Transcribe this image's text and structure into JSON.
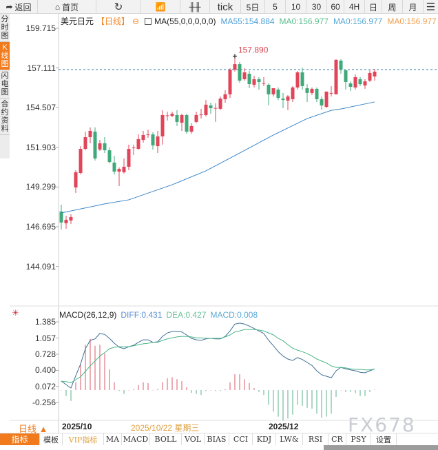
{
  "toolbar": {
    "back": "返回",
    "home": "首页",
    "tick": "tick",
    "items": [
      "5日",
      "5",
      "10",
      "30",
      "60",
      "4H",
      "日",
      "周",
      "月"
    ]
  },
  "sidebar": [
    "分时图",
    "K线图",
    "闪电图",
    "合约资料"
  ],
  "info": {
    "symbol": "美元日元",
    "period": "【日线】",
    "ma_label": "MA(55,0,0,0,0,0)",
    "ma55": "MA55:154.884",
    "ma0a": "MA0:156.977",
    "ma0b": "MA0:156.977",
    "ma0c": "MA0:156.977"
  },
  "colors": {
    "up": "#e0455a",
    "down": "#3fa97a",
    "ma55": "#3b85c6",
    "diff": "#3d6f95",
    "dea": "#48b687",
    "accent": "#f07a1c"
  },
  "price_axis": [
    "159.715",
    "157.111",
    "154.507",
    "151.903",
    "149.299",
    "146.695",
    "144.091"
  ],
  "high_label": "157.890",
  "last_price_line": 157.0,
  "macd": {
    "title": "MACD(26,12,9)",
    "diff_label": "DIFF:0.431",
    "dea_label": "DEA:0.427",
    "macd_label": "MACD:0.008",
    "axis": [
      "1.385",
      "1.057",
      "0.728",
      "0.400",
      "0.072",
      "-0.256"
    ],
    "diff": [
      0.18,
      0.11,
      0.04,
      0.29,
      0.53,
      0.84,
      1.01,
      1.04,
      1.15,
      1.13,
      1.05,
      0.95,
      0.87,
      0.84,
      0.88,
      0.91,
      0.97,
      1.02,
      1.02,
      0.97,
      0.98,
      1.09,
      1.16,
      1.19,
      1.19,
      1.18,
      1.12,
      1.05,
      1.02,
      1.01,
      1.04,
      1.05,
      1.04,
      1.04,
      1.09,
      1.2,
      1.34,
      1.36,
      1.34,
      1.3,
      1.25,
      1.2,
      1.15,
      1.01,
      0.9,
      0.78,
      0.69,
      0.63,
      0.6,
      0.66,
      0.62,
      0.56,
      0.5,
      0.39,
      0.31,
      0.28,
      0.25,
      0.39,
      0.46,
      0.43,
      0.41,
      0.39,
      0.36,
      0.35,
      0.39,
      0.431
    ],
    "dea": [
      0.18,
      0.17,
      0.15,
      0.21,
      0.27,
      0.38,
      0.49,
      0.59,
      0.69,
      0.76,
      0.84,
      0.87,
      0.88,
      0.88,
      0.88,
      0.9,
      0.92,
      0.94,
      0.95,
      0.97,
      0.97,
      1.01,
      1.04,
      1.06,
      1.08,
      1.09,
      1.09,
      1.08,
      1.06,
      1.06,
      1.05,
      1.05,
      1.05,
      1.05,
      1.08,
      1.12,
      1.18,
      1.2,
      1.23,
      1.23,
      1.23,
      1.22,
      1.2,
      1.16,
      1.12,
      1.05,
      1.0,
      0.92,
      0.85,
      0.81,
      0.78,
      0.74,
      0.69,
      0.63,
      0.59,
      0.55,
      0.49,
      0.46,
      0.46,
      0.45,
      0.43,
      0.42,
      0.42,
      0.41,
      0.41,
      0.427
    ],
    "hist": [
      0,
      -0.12,
      -0.22,
      0.16,
      0.52,
      0.92,
      1.04,
      0.9,
      0.92,
      0.74,
      0.42,
      0.16,
      -0.02,
      -0.08,
      0,
      0.02,
      0.1,
      0.16,
      0.14,
      0,
      0.02,
      0.16,
      0.24,
      0.26,
      0.22,
      0.18,
      0.06,
      -0.06,
      -0.08,
      -0.1,
      -0.02,
      0,
      -0.02,
      -0.02,
      0.02,
      0.16,
      0.32,
      0.32,
      0.22,
      0.14,
      0.04,
      -0.04,
      -0.1,
      -0.3,
      -0.44,
      -0.54,
      -0.62,
      -0.58,
      -0.5,
      -0.3,
      -0.32,
      -0.36,
      -0.38,
      -0.48,
      -0.56,
      -0.54,
      -0.48,
      -0.14,
      0,
      -0.04,
      -0.04,
      -0.06,
      -0.12,
      -0.12,
      -0.04,
      0.008
    ]
  },
  "chart_data": {
    "type": "candlestick",
    "ylim": [
      144.091,
      159.715
    ],
    "candles_ohlc": [
      [
        147.69,
        148.14,
        146.51,
        146.97
      ],
      [
        146.92,
        147.42,
        146.56,
        147.15
      ],
      [
        147.1,
        147.51,
        146.88,
        147.33
      ],
      [
        149.27,
        150.4,
        148.91,
        150.27
      ],
      [
        150.22,
        151.98,
        150.13,
        151.8
      ],
      [
        151.8,
        152.93,
        151.71,
        152.57
      ],
      [
        152.57,
        153.21,
        152.17,
        152.98
      ],
      [
        152.93,
        153.21,
        151.04,
        151.17
      ],
      [
        151.76,
        152.39,
        151.67,
        152.17
      ],
      [
        152.17,
        152.57,
        151.53,
        151.71
      ],
      [
        151.71,
        151.89,
        150.85,
        150.94
      ],
      [
        150.9,
        151.35,
        150.13,
        150.31
      ],
      [
        150.31,
        150.58,
        149.36,
        150.49
      ],
      [
        150.27,
        151.17,
        150.18,
        150.63
      ],
      [
        150.63,
        152.08,
        150.4,
        151.8
      ],
      [
        151.85,
        152.08,
        151.4,
        151.89
      ],
      [
        151.8,
        152.75,
        151.76,
        152.44
      ],
      [
        152.39,
        152.98,
        152.21,
        152.71
      ],
      [
        152.73,
        153.07,
        152.53,
        152.75
      ],
      [
        152.75,
        152.89,
        151.76,
        152.03
      ],
      [
        151.98,
        152.98,
        151.53,
        152.62
      ],
      [
        152.62,
        154.34,
        152.08,
        154.02
      ],
      [
        153.97,
        154.24,
        153.66,
        154.0
      ],
      [
        153.97,
        154.24,
        153.88,
        154.11
      ],
      [
        154.02,
        154.34,
        153.3,
        153.57
      ],
      [
        153.52,
        154.11,
        152.98,
        154.02
      ],
      [
        154.02,
        154.11,
        152.8,
        152.93
      ],
      [
        152.93,
        153.48,
        152.8,
        153.3
      ],
      [
        153.57,
        154.24,
        153.48,
        154.02
      ],
      [
        154.04,
        154.43,
        153.79,
        154.06
      ],
      [
        154.02,
        155.01,
        153.93,
        154.7
      ],
      [
        154.65,
        154.83,
        154.11,
        154.47
      ],
      [
        154.47,
        154.79,
        153.57,
        154.49
      ],
      [
        154.43,
        155.24,
        154.34,
        155.1
      ],
      [
        155.06,
        155.65,
        154.83,
        155.38
      ],
      [
        155.38,
        157.09,
        155.15,
        157.0
      ],
      [
        157.0,
        157.89,
        156.87,
        157.36
      ],
      [
        157.36,
        157.5,
        156.14,
        156.28
      ],
      [
        156.37,
        157.09,
        156.28,
        156.82
      ],
      [
        156.73,
        156.91,
        155.78,
        156.05
      ],
      [
        156.01,
        156.6,
        155.83,
        156.37
      ],
      [
        156.37,
        156.51,
        155.69,
        156.19
      ],
      [
        156.1,
        156.51,
        155.92,
        156.12
      ],
      [
        156.01,
        156.1,
        154.65,
        155.38
      ],
      [
        155.38,
        155.78,
        155.24,
        155.78
      ],
      [
        155.69,
        155.83,
        155.01,
        155.15
      ],
      [
        155.1,
        155.47,
        154.47,
        155.01
      ],
      [
        154.97,
        155.33,
        154.34,
        155.24
      ],
      [
        155.06,
        155.92,
        154.88,
        155.83
      ],
      [
        155.83,
        156.91,
        155.69,
        156.82
      ],
      [
        156.82,
        157.14,
        155.69,
        155.92
      ],
      [
        155.78,
        156.05,
        154.88,
        155.47
      ],
      [
        155.47,
        155.83,
        155.33,
        155.74
      ],
      [
        155.74,
        155.83,
        154.88,
        155.06
      ],
      [
        155.06,
        155.24,
        154.38,
        154.65
      ],
      [
        154.56,
        155.56,
        154.47,
        155.56
      ],
      [
        155.45,
        155.92,
        155.24,
        155.47
      ],
      [
        155.38,
        157.68,
        155.38,
        157.64
      ],
      [
        157.59,
        157.68,
        156.73,
        157.0
      ],
      [
        156.96,
        156.96,
        155.69,
        156.19
      ],
      [
        156.1,
        156.23,
        155.6,
        155.87
      ],
      [
        155.83,
        156.69,
        155.69,
        156.51
      ],
      [
        156.37,
        156.51,
        155.92,
        156.05
      ],
      [
        155.96,
        156.37,
        155.74,
        156.23
      ],
      [
        156.28,
        156.96,
        156.19,
        156.78
      ],
      [
        156.55,
        157.05,
        156.28,
        156.87
      ]
    ],
    "ma55_points": [
      [
        0,
        147.6
      ],
      [
        9,
        148.19
      ],
      [
        14,
        148.46
      ],
      [
        23,
        149.45
      ],
      [
        30,
        150.36
      ],
      [
        37,
        151.53
      ],
      [
        44,
        152.71
      ],
      [
        51,
        153.79
      ],
      [
        56,
        154.33
      ],
      [
        58,
        154.42
      ],
      [
        65,
        154.88
      ]
    ]
  },
  "dates": {
    "period": "日线 ▲",
    "d1": "2025/10",
    "cursor": "2025/10/22 星期三",
    "d2": "2025/12"
  },
  "tabs": [
    "指标",
    "模板",
    "VIP指标",
    "MA",
    "MACD",
    "BOLL",
    "VOL",
    "BIAS",
    "CCI",
    "KDJ",
    "LW&",
    "RSI",
    "CR",
    "PSY",
    "设置"
  ],
  "watermark": "FX678"
}
